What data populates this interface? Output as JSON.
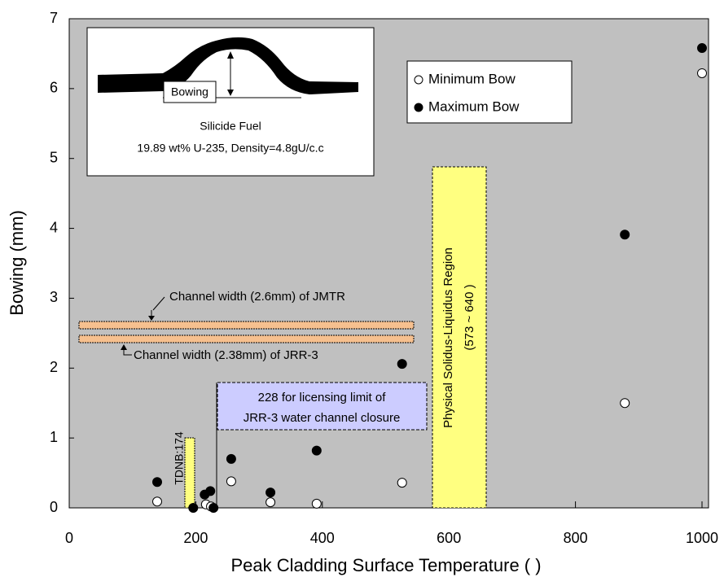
{
  "chart_data": {
    "type": "scatter",
    "xlabel": "Peak Cladding Surface Temperature (      )",
    "ylabel": "Bowing (mm)",
    "xlim": [
      0,
      1000
    ],
    "xticks": [
      0,
      200,
      400,
      600,
      800,
      1000
    ],
    "ylim": [
      0,
      7
    ],
    "yticks": [
      0,
      1,
      2,
      3,
      4,
      5,
      6,
      7
    ],
    "background": "#c0c0c0",
    "series": [
      {
        "name": "Minimum   Bow",
        "color": "#ffffff",
        "x": [
          139,
          216,
          224,
          256,
          318,
          391,
          526,
          878,
          1000
        ],
        "values": [
          0.09,
          0.05,
          0.02,
          0.38,
          0.08,
          0.06,
          0.36,
          1.5,
          6.22
        ]
      },
      {
        "name": "Maximum Bow",
        "color": "#000000",
        "x": [
          139,
          196,
          214,
          223,
          228,
          256,
          318,
          391,
          526,
          878,
          1000
        ],
        "values": [
          0.37,
          0.0,
          0.19,
          0.24,
          0.0,
          0.7,
          0.22,
          0.82,
          2.06,
          3.91,
          6.58
        ]
      }
    ],
    "annotations": {
      "jmtr": "Channel width (2.6mm) of JMTR",
      "jrr3": "Channel width (2.38mm) of JRR-3",
      "tdnb": "TDNB:174",
      "limit_line1": "228     for licensing limit of",
      "limit_line2": "JRR-3 water channel closure",
      "region_line1": "Physical Solidus-Liquidus Region",
      "region_line2": "(573 ~ 640     )",
      "inset_bowing": "Bowing",
      "inset_title": "Silicide Fuel",
      "inset_sub": "19.89 wt% U-235, Density=4.8gU/c.c"
    }
  }
}
